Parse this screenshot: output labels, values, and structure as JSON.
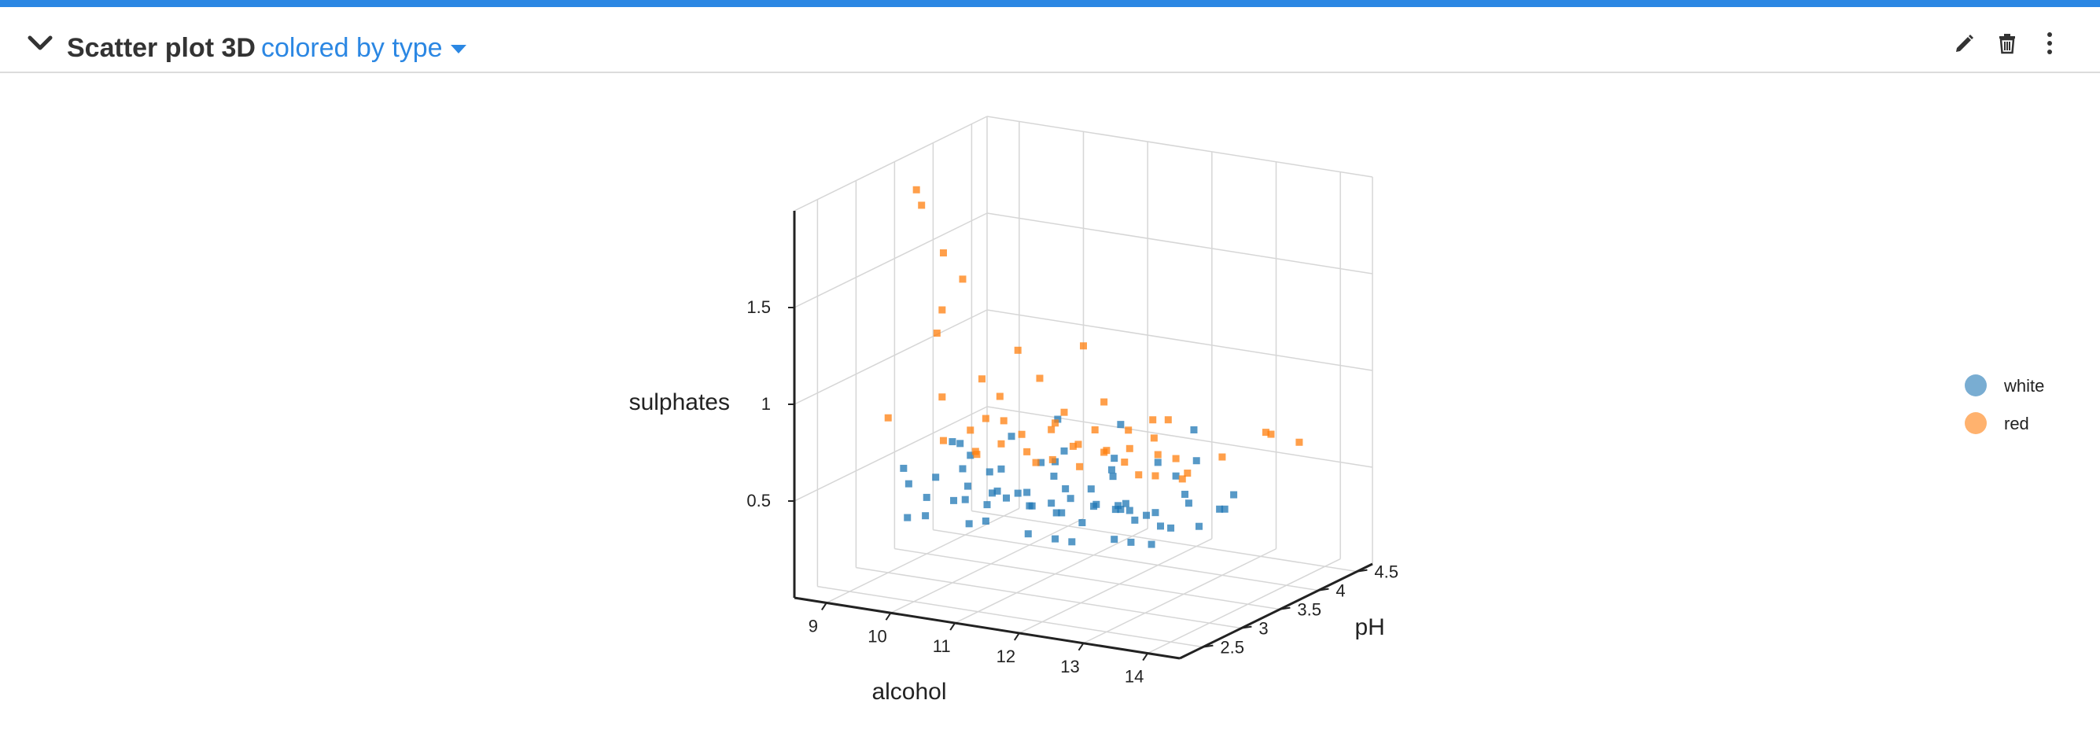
{
  "header": {
    "title": "Scatter plot 3D",
    "subtitle": "colored by type",
    "icons": [
      "chevron-down-icon",
      "caret-down-icon",
      "pencil-icon",
      "trash-icon",
      "more-vertical-icon"
    ]
  },
  "colors": {
    "accent": "#2b87e3",
    "white_series": "#1f77b4",
    "red_series": "#ff7f0e"
  },
  "chart_data": {
    "type": "scatter",
    "dimensions": 3,
    "xlabel": "alcohol",
    "ylabel": "pH",
    "zlabel": "sulphates",
    "x_ticks": [
      9,
      10,
      11,
      12,
      13,
      14
    ],
    "y_ticks": [
      2.5,
      3,
      3.5,
      4,
      4.5
    ],
    "z_ticks": [
      0.5,
      1,
      1.5
    ],
    "xlim": [
      8.5,
      14.5
    ],
    "ylim": [
      2.2,
      4.7
    ],
    "zlim": [
      0,
      2
    ],
    "legend_position": "right",
    "grid": true,
    "series": [
      {
        "name": "white",
        "color": "#1f77b4",
        "points": [
          [
            9.2,
            3.1,
            0.45
          ],
          [
            9.5,
            3.2,
            0.48
          ],
          [
            9.6,
            3.0,
            0.42
          ],
          [
            9.8,
            3.3,
            0.52
          ],
          [
            9.9,
            3.1,
            0.4
          ],
          [
            10.0,
            3.2,
            0.46
          ],
          [
            10.1,
            3.4,
            0.5
          ],
          [
            10.2,
            3.0,
            0.44
          ],
          [
            10.3,
            3.2,
            0.38
          ],
          [
            10.4,
            3.3,
            0.55
          ],
          [
            10.5,
            3.1,
            0.47
          ],
          [
            10.6,
            3.2,
            0.43
          ],
          [
            10.7,
            3.0,
            0.51
          ],
          [
            10.8,
            3.3,
            0.45
          ],
          [
            10.9,
            3.1,
            0.49
          ],
          [
            11.0,
            3.2,
            0.41
          ],
          [
            11.1,
            3.4,
            0.53
          ],
          [
            11.2,
            3.0,
            0.46
          ],
          [
            11.3,
            3.2,
            0.44
          ],
          [
            11.4,
            3.3,
            0.5
          ],
          [
            11.5,
            3.1,
            0.42
          ],
          [
            11.6,
            3.2,
            0.48
          ],
          [
            11.7,
            3.0,
            0.45
          ],
          [
            11.8,
            3.3,
            0.52
          ],
          [
            11.9,
            3.1,
            0.39
          ],
          [
            12.0,
            3.2,
            0.47
          ],
          [
            12.1,
            3.4,
            0.43
          ],
          [
            12.2,
            3.0,
            0.51
          ],
          [
            12.3,
            3.2,
            0.46
          ],
          [
            12.4,
            3.3,
            0.44
          ],
          [
            12.5,
            3.1,
            0.49
          ],
          [
            12.6,
            3.2,
            0.42
          ],
          [
            12.7,
            3.0,
            0.55
          ],
          [
            12.8,
            3.3,
            0.45
          ],
          [
            12.9,
            3.1,
            0.48
          ],
          [
            13.0,
            3.2,
            0.41
          ],
          [
            13.2,
            3.4,
            0.5
          ],
          [
            13.4,
            3.0,
            0.46
          ],
          [
            13.6,
            3.2,
            0.44
          ],
          [
            13.8,
            3.3,
            0.52
          ],
          [
            9.4,
            3.5,
            0.6
          ],
          [
            10.2,
            3.6,
            0.65
          ],
          [
            11.0,
            3.5,
            0.58
          ],
          [
            11.8,
            3.6,
            0.62
          ],
          [
            12.6,
            3.5,
            0.66
          ],
          [
            9.7,
            2.9,
            0.35
          ],
          [
            10.5,
            2.8,
            0.37
          ],
          [
            11.3,
            2.9,
            0.34
          ],
          [
            12.1,
            2.8,
            0.36
          ],
          [
            12.9,
            2.9,
            0.38
          ],
          [
            10.0,
            3.1,
            0.7
          ],
          [
            11.5,
            3.2,
            0.72
          ],
          [
            12.5,
            3.0,
            0.68
          ],
          [
            13.5,
            3.1,
            0.62
          ],
          [
            14.0,
            3.2,
            0.55
          ],
          [
            9.0,
            3.2,
            0.5
          ],
          [
            10.8,
            3.7,
            0.75
          ],
          [
            11.9,
            3.6,
            0.8
          ],
          [
            12.8,
            3.8,
            0.78
          ],
          [
            13.2,
            3.5,
            0.7
          ],
          [
            9.3,
            3.0,
            0.3
          ],
          [
            10.4,
            3.1,
            0.32
          ],
          [
            11.6,
            3.0,
            0.31
          ],
          [
            12.4,
            3.1,
            0.33
          ],
          [
            13.1,
            3.0,
            0.36
          ],
          [
            9.8,
            3.4,
            0.57
          ],
          [
            10.9,
            3.4,
            0.59
          ],
          [
            12.0,
            3.4,
            0.61
          ],
          [
            13.0,
            3.4,
            0.63
          ],
          [
            13.9,
            3.4,
            0.58
          ]
        ]
      },
      {
        "name": "red",
        "color": "#ff7f0e",
        "points": [
          [
            9.5,
            3.3,
            0.65
          ],
          [
            9.8,
            3.4,
            0.7
          ],
          [
            10.0,
            3.3,
            0.62
          ],
          [
            10.2,
            3.5,
            0.75
          ],
          [
            10.4,
            3.3,
            0.68
          ],
          [
            10.6,
            3.4,
            0.72
          ],
          [
            10.8,
            3.3,
            0.66
          ],
          [
            11.0,
            3.5,
            0.78
          ],
          [
            11.2,
            3.3,
            0.64
          ],
          [
            11.4,
            3.4,
            0.7
          ],
          [
            11.6,
            3.3,
            0.74
          ],
          [
            11.8,
            3.5,
            0.68
          ],
          [
            12.0,
            3.3,
            0.72
          ],
          [
            12.2,
            3.4,
            0.66
          ],
          [
            12.4,
            3.3,
            0.76
          ],
          [
            12.6,
            3.5,
            0.7
          ],
          [
            12.8,
            3.3,
            0.64
          ],
          [
            13.0,
            3.4,
            0.72
          ],
          [
            13.3,
            3.3,
            0.68
          ],
          [
            13.6,
            3.5,
            0.74
          ],
          [
            9.6,
            3.2,
            0.9
          ],
          [
            10.1,
            3.3,
            1.0
          ],
          [
            10.5,
            3.2,
            0.95
          ],
          [
            11.0,
            3.3,
            1.05
          ],
          [
            11.5,
            3.2,
            0.92
          ],
          [
            12.0,
            3.3,
            0.98
          ],
          [
            12.5,
            3.2,
            0.88
          ],
          [
            13.0,
            3.3,
            0.94
          ],
          [
            9.4,
            3.3,
            1.2
          ],
          [
            9.6,
            3.2,
            1.35
          ],
          [
            9.8,
            3.3,
            1.5
          ],
          [
            9.2,
            3.2,
            1.95
          ],
          [
            9.4,
            3.1,
            1.9
          ],
          [
            9.5,
            3.3,
            1.62
          ],
          [
            10.3,
            3.6,
            1.1
          ],
          [
            11.2,
            3.7,
            1.15
          ],
          [
            12.4,
            3.6,
            0.85
          ],
          [
            13.8,
            3.9,
            0.8
          ],
          [
            14.2,
            4.0,
            0.75
          ],
          [
            14.0,
            3.8,
            0.82
          ],
          [
            9.9,
            3.4,
            0.58
          ],
          [
            10.7,
            3.5,
            0.56
          ],
          [
            11.5,
            3.4,
            0.6
          ],
          [
            12.3,
            3.5,
            0.58
          ],
          [
            13.1,
            3.4,
            0.62
          ],
          [
            10.4,
            3.1,
            0.85
          ],
          [
            11.3,
            3.2,
            0.82
          ],
          [
            12.1,
            3.1,
            0.88
          ],
          [
            12.9,
            3.2,
            0.86
          ],
          [
            9.0,
            3.0,
            0.8
          ]
        ]
      }
    ]
  }
}
